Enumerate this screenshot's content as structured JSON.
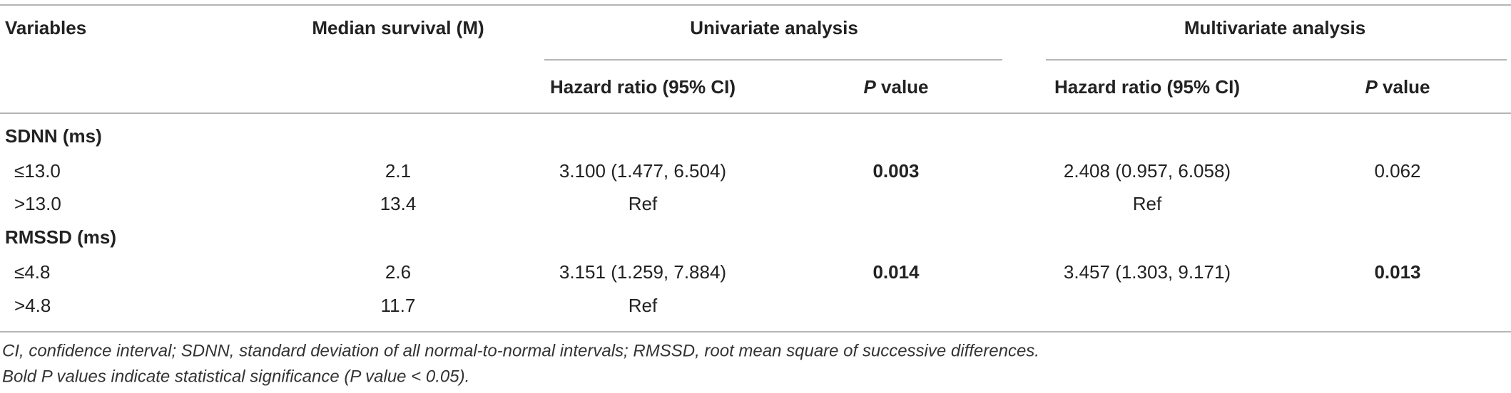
{
  "header": {
    "variables": "Variables",
    "median": "Median survival (M)",
    "univariate": "Univariate analysis",
    "multivariate": "Multivariate analysis",
    "uni_hr": "Hazard ratio (95% CI)",
    "uni_p": [
      {
        "text": "P",
        "italic": true
      },
      {
        "text": " value"
      }
    ],
    "multi_hr": "Hazard ratio (95% CI)",
    "multi_p": [
      {
        "text": "P",
        "italic": true
      },
      {
        "text": " value"
      }
    ]
  },
  "rows": [
    {
      "label": "SDNN (ms)",
      "group": true
    },
    {
      "label": "≤13.0",
      "median": "2.1",
      "uni_hr": "3.100 (1.477, 6.504)",
      "uni_p": "0.003",
      "uni_p_bold": true,
      "multi_hr": "2.408 (0.957, 6.058)",
      "multi_p": "0.062"
    },
    {
      "label": ">13.0",
      "median": "13.4",
      "uni_hr": "Ref",
      "multi_hr": "Ref"
    },
    {
      "label": "RMSSD (ms)",
      "group": true
    },
    {
      "label": "≤4.8",
      "median": "2.6",
      "uni_hr": "3.151 (1.259, 7.884)",
      "uni_p": "0.014",
      "uni_p_bold": true,
      "multi_hr": "3.457 (1.303, 9.171)",
      "multi_p": "0.013",
      "multi_p_bold": true
    },
    {
      "label": ">4.8",
      "median": "11.7",
      "uni_hr": "Ref"
    }
  ],
  "footnotes": [
    "CI, confidence interval; SDNN, standard deviation of all normal-to-normal intervals; RMSSD, root mean square of successive differences.",
    "Bold P values indicate statistical significance (P value < 0.05)."
  ]
}
